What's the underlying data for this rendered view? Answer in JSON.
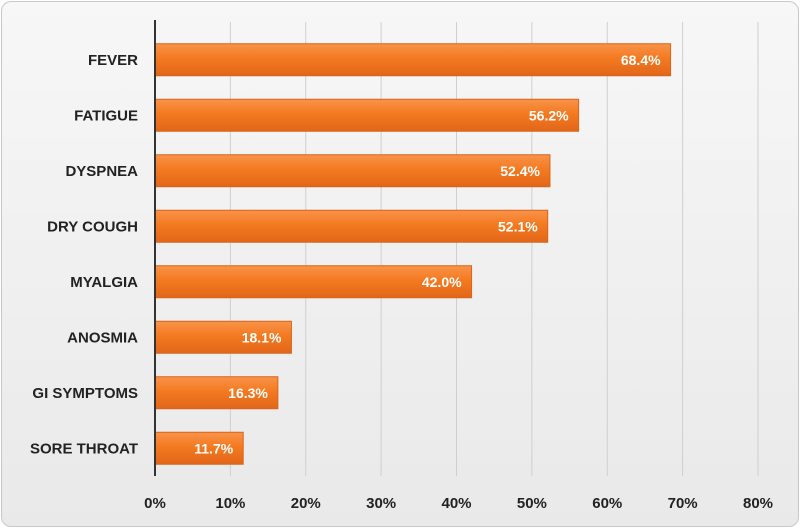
{
  "chart_data": {
    "type": "bar",
    "orientation": "horizontal",
    "categories": [
      "FEVER",
      "FATIGUE",
      "DYSPNEA",
      "DRY COUGH",
      "MYALGIA",
      "ANOSMIA",
      "GI SYMPTOMS",
      "SORE THROAT"
    ],
    "values": [
      68.4,
      56.2,
      52.4,
      52.1,
      42.0,
      18.1,
      16.3,
      11.7
    ],
    "data_labels": [
      "68.4%",
      "56.2%",
      "52.4%",
      "52.1%",
      "42.0%",
      "18.1%",
      "16.3%",
      "11.7%"
    ],
    "x_ticks": [
      "0%",
      "10%",
      "20%",
      "30%",
      "40%",
      "50%",
      "60%",
      "70%",
      "80%"
    ],
    "xlim": [
      0,
      80
    ],
    "title": "",
    "xlabel": "",
    "ylabel": "",
    "grid": "vertical",
    "legend": "none",
    "colors": {
      "bar": "#f47a20",
      "bar_edge": "#d9641a",
      "grid": "#cfcfcf",
      "axis": "#333333",
      "label": "#222222",
      "data_label": "#ffffff"
    }
  }
}
